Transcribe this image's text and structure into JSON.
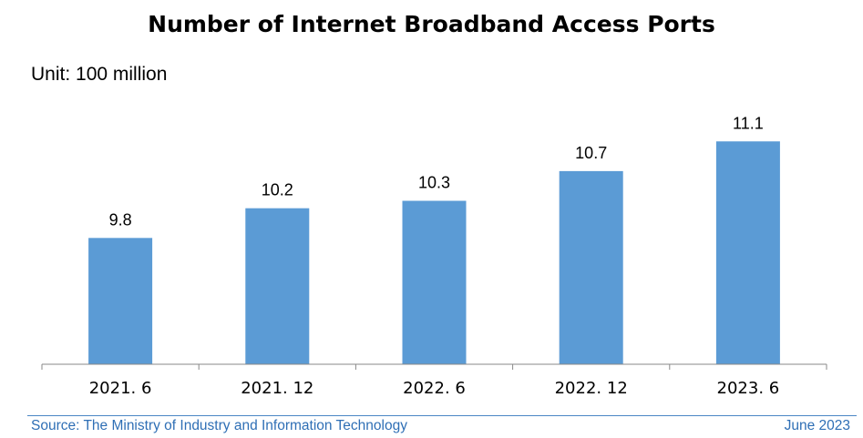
{
  "chart_data": {
    "type": "bar",
    "title": "Number of Internet Broadband Access Ports",
    "unit_label": "Unit: 100 million",
    "categories": [
      "2021. 6",
      "2021. 12",
      "2022. 6",
      "2022. 12",
      "2023. 6"
    ],
    "values": [
      9.8,
      10.2,
      10.3,
      10.7,
      11.1
    ],
    "bar_color": "#5b9bd5",
    "axis_color": "#888888",
    "grid": false,
    "ylim": [
      8.1,
      11.9
    ]
  },
  "footer": {
    "source": "Source: The Ministry of Industry and Information Technology",
    "date": "June 2023",
    "color": "#2f6fb5"
  }
}
